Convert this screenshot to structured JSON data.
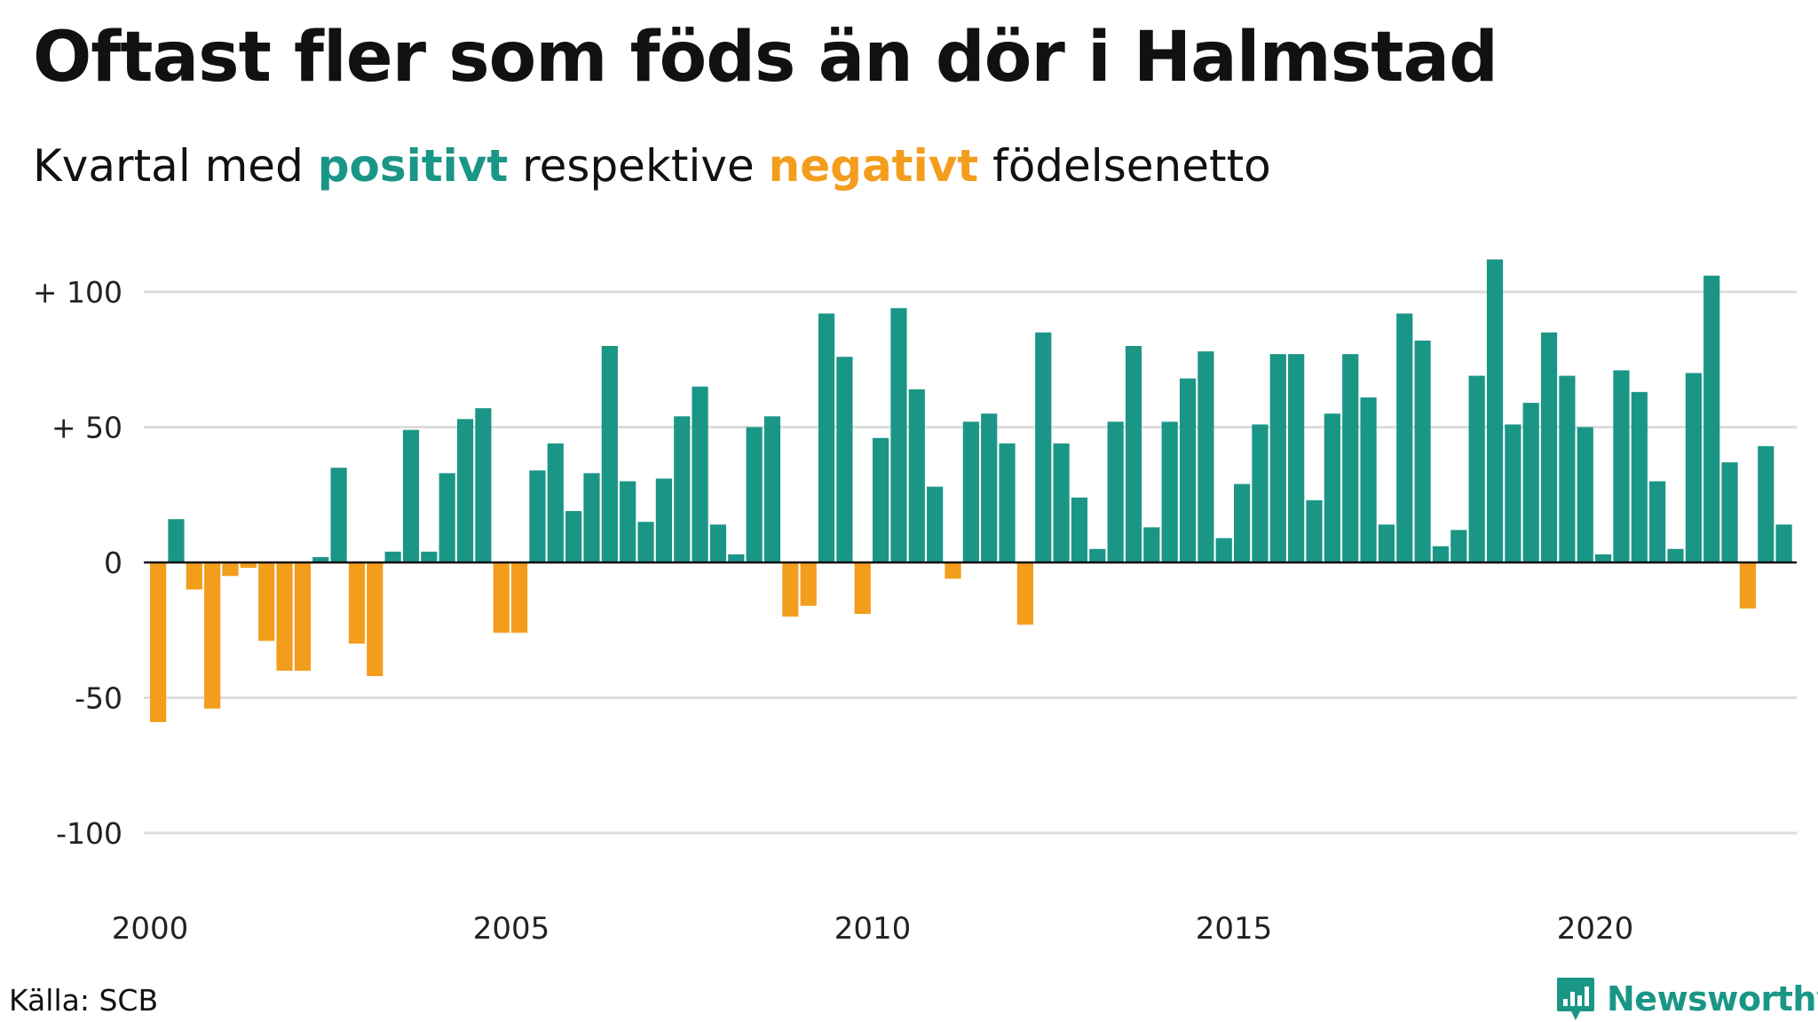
{
  "header": {
    "title": "Oftast fler som föds än dör i Halmstad",
    "subtitle_prefix": "Kvartal med ",
    "subtitle_positive": "positivt",
    "subtitle_middle": " respektive ",
    "subtitle_negative": "negativt",
    "subtitle_suffix": " födelsenetto"
  },
  "footer": {
    "source": "Källa: SCB",
    "brand": "Newsworthy",
    "brand_icon": "bar-chart-speech-bubble-icon"
  },
  "colors": {
    "positive": "#1a9686",
    "negative": "#f39d1d",
    "grid": "#dddddd",
    "axis": "#111111"
  },
  "chart_data": {
    "type": "bar",
    "ylim": [
      -125,
      125
    ],
    "yticks": [
      100,
      50,
      0,
      -50,
      -100
    ],
    "ytick_labels": [
      "+ 100",
      "+  50",
      "0",
      "-50",
      "-100"
    ],
    "xtick_labels": [
      "2000",
      "2005",
      "2010",
      "2015",
      "2020"
    ],
    "xtick_start_index": [
      0,
      20,
      40,
      60,
      80
    ],
    "grid": true,
    "series": [
      {
        "values": [
          -59,
          16,
          -10,
          -54,
          -5,
          -2,
          -29,
          -40,
          -40,
          2,
          35,
          -30,
          -42,
          4,
          49,
          4,
          33,
          53,
          57,
          -26,
          -26,
          34,
          44,
          19,
          33,
          80,
          30,
          15,
          31,
          54,
          65,
          14,
          3,
          50,
          54,
          -20,
          -16,
          92,
          76,
          -19,
          46,
          94,
          64,
          28,
          -6,
          52,
          55,
          44,
          -23,
          85,
          44,
          24,
          5,
          52,
          80,
          13,
          52,
          68,
          78,
          9,
          29,
          51,
          77,
          77,
          23,
          55,
          77,
          61,
          14,
          92,
          82,
          6,
          12,
          69,
          112,
          51,
          59,
          85,
          69,
          50,
          3,
          71,
          63,
          30,
          5,
          70,
          106,
          37,
          -17,
          43,
          14
        ]
      }
    ]
  }
}
